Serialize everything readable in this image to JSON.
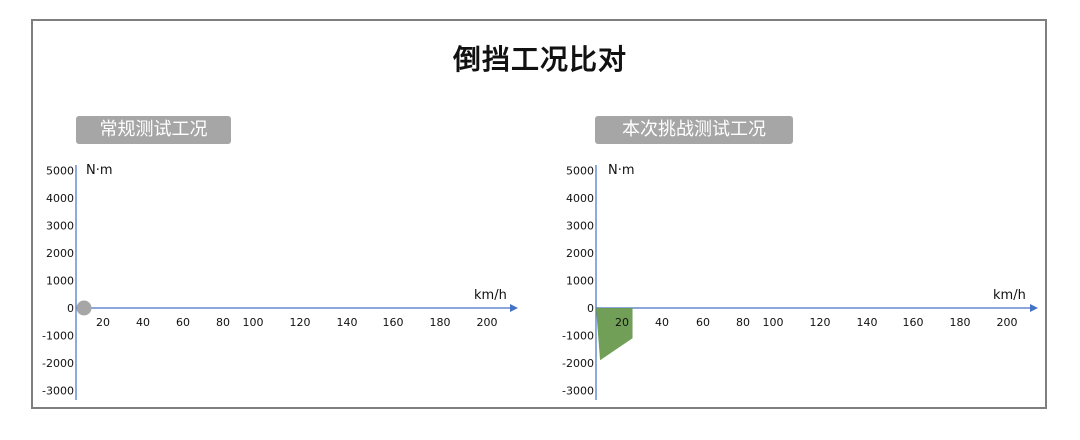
{
  "page": {
    "title": "倒挡工况比对"
  },
  "chart_data": [
    {
      "type": "area",
      "panel_label": "常规测试工况",
      "ylabel": "N·m",
      "xlabel": "km/h",
      "yticks": [
        5000,
        4000,
        3000,
        2000,
        1000,
        0,
        -1000,
        -2000,
        -3000
      ],
      "xticks": [
        20,
        40,
        60,
        80,
        100,
        120,
        140,
        160,
        180,
        200
      ],
      "ylim": [
        -3000,
        5000
      ],
      "xlim": [
        0,
        205
      ],
      "points": [
        {
          "x": 3,
          "y": 0
        }
      ],
      "color": "#a6a6a6",
      "grid": false
    },
    {
      "type": "area",
      "panel_label": "本次挑战测试工况",
      "ylabel": "N·m",
      "xlabel": "km/h",
      "yticks": [
        5000,
        4000,
        3000,
        2000,
        1000,
        0,
        -1000,
        -2000,
        -3000
      ],
      "xticks": [
        20,
        40,
        60,
        80,
        100,
        120,
        140,
        160,
        180,
        200
      ],
      "ylim": [
        -3000,
        5000
      ],
      "xlim": [
        0,
        205
      ],
      "polygon": [
        {
          "x": 0,
          "y": 0
        },
        {
          "x": 2,
          "y": -1900
        },
        {
          "x": 18,
          "y": -1100
        },
        {
          "x": 18,
          "y": 0
        }
      ],
      "color": "#6a9a4f",
      "grid": false
    }
  ]
}
